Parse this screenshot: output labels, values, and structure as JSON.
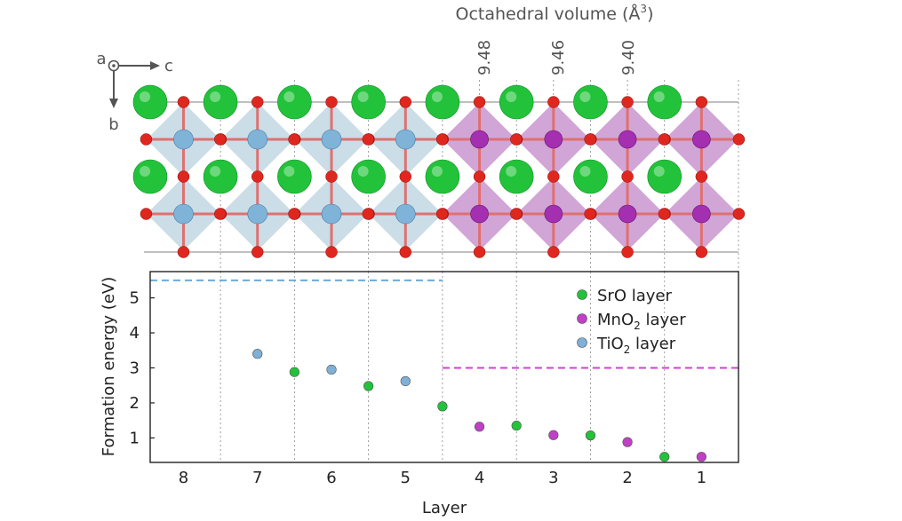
{
  "structure": {
    "title": "Octahedral volume (Å",
    "title_sup": "3",
    "title_close": ")",
    "volume_labels": [
      "9.48",
      "9.46",
      "9.40"
    ],
    "axes": {
      "a": "a",
      "b": "b",
      "c": "c"
    },
    "colors": {
      "sr": "#22c33a",
      "o": "#e0271f",
      "ti": "#7fb3d8",
      "mn": "#a42fb0",
      "ti_oct": "#a9c6d6",
      "mn_oct": "#c287c8"
    }
  },
  "chart_data": {
    "type": "scatter",
    "xlabel": "Layer",
    "ylabel": "Formation energy (eV)",
    "x_categories": [
      "8",
      "7",
      "6",
      "5",
      "4",
      "3",
      "2",
      "1"
    ],
    "x_tick_positions": [
      8,
      7,
      6,
      5,
      4,
      3,
      2,
      1
    ],
    "xlim": [
      8.45,
      0.5
    ],
    "ylim": [
      0.3,
      5.75
    ],
    "y_ticks": [
      1,
      2,
      3,
      4,
      5
    ],
    "vertical_gridlines_at": [
      7.5,
      6.5,
      5.5,
      4.5,
      3.5,
      2.5,
      1.5,
      0.5
    ],
    "series": [
      {
        "name": "SrO layer",
        "sub": "",
        "name_tail": "",
        "color": "#22c33a",
        "points": [
          [
            6.5,
            2.88
          ],
          [
            5.5,
            2.48
          ],
          [
            4.5,
            1.9
          ],
          [
            3.5,
            1.35
          ],
          [
            2.5,
            1.07
          ],
          [
            1.5,
            0.46
          ]
        ]
      },
      {
        "name": "MnO",
        "sub": "2",
        "name_tail": " layer",
        "color": "#c040c6",
        "points": [
          [
            4,
            1.32
          ],
          [
            3,
            1.08
          ],
          [
            2,
            0.88
          ],
          [
            1,
            0.46
          ]
        ]
      },
      {
        "name": "TiO",
        "sub": "2",
        "name_tail": " layer",
        "color": "#7fb0d6",
        "points": [
          [
            7,
            3.4
          ],
          [
            6,
            2.95
          ],
          [
            5,
            2.62
          ]
        ]
      }
    ],
    "reference_lines": [
      {
        "y": 5.5,
        "x_from": 8.45,
        "x_to": 4.5,
        "color": "#6aacda",
        "style": "dashed"
      },
      {
        "y": 3.0,
        "x_from": 4.5,
        "x_to": 0.5,
        "color": "#d23fd0",
        "style": "dashed"
      }
    ],
    "legend_position": "top-right"
  }
}
